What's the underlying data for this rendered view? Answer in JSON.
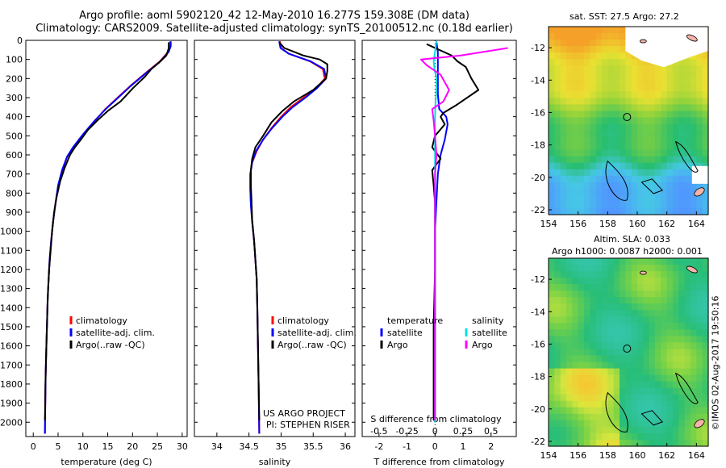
{
  "title_line1": "Argo profile: aoml 5902120_42 12-May-2010 16.277S 159.308E (DM data)",
  "title_line2": "Climatology: CARS2009. Satellite-adjusted climatology: synTS_20100512.nc (0.18d earlier)",
  "credit": "©IMOS 02-Aug-2017 19:50:16",
  "colors": {
    "climatology": "#ff0000",
    "satellite": "#0000ff",
    "argo": "#000000",
    "salinity_satellite": "#00e0e0",
    "salinity_argo": "#ff00ff"
  },
  "chart_data": [
    {
      "type": "line",
      "xlabel": "temperature (deg C)",
      "xlim": [
        -1.5,
        31
      ],
      "xticks": [
        0,
        5,
        10,
        15,
        20,
        25,
        30
      ],
      "ylim": [
        2075,
        0
      ],
      "yticks": [
        0,
        100,
        200,
        300,
        400,
        500,
        600,
        700,
        800,
        900,
        1000,
        1100,
        1200,
        1300,
        1400,
        1500,
        1600,
        1700,
        1800,
        1900,
        2000
      ],
      "y_reversed": true,
      "legend": {
        "position": "lower-center",
        "entries": [
          "climatology",
          "satellite-adj. clim.",
          "Argo(..raw -QC)"
        ]
      },
      "series": [
        {
          "name": "climatology",
          "points": [
            [
              27.6,
              5
            ],
            [
              27.6,
              30
            ],
            [
              27.2,
              60
            ],
            [
              25.5,
              110
            ],
            [
              22.7,
              170
            ],
            [
              19.5,
              240
            ],
            [
              17.0,
              300
            ],
            [
              14.5,
              360
            ],
            [
              12.5,
              420
            ],
            [
              10.2,
              490
            ],
            [
              8.2,
              560
            ],
            [
              6.8,
              610
            ],
            [
              5.9,
              680
            ],
            [
              5.1,
              760
            ],
            [
              4.5,
              850
            ],
            [
              4.0,
              950
            ],
            [
              3.6,
              1050
            ],
            [
              3.3,
              1150
            ],
            [
              3.1,
              1250
            ],
            [
              2.9,
              1350
            ],
            [
              2.8,
              1450
            ],
            [
              2.7,
              1550
            ],
            [
              2.6,
              1650
            ],
            [
              2.5,
              1750
            ],
            [
              2.45,
              1850
            ],
            [
              2.4,
              1950
            ],
            [
              2.35,
              2060
            ]
          ]
        },
        {
          "name": "satellite-adj. clim.",
          "points": [
            [
              27.7,
              5
            ],
            [
              27.7,
              30
            ],
            [
              27.3,
              60
            ],
            [
              25.6,
              110
            ],
            [
              22.8,
              170
            ],
            [
              19.6,
              240
            ],
            [
              17.1,
              300
            ],
            [
              14.6,
              360
            ],
            [
              12.4,
              420
            ],
            [
              10.1,
              490
            ],
            [
              8.0,
              560
            ],
            [
              6.8,
              610
            ],
            [
              5.8,
              680
            ],
            [
              5.0,
              760
            ],
            [
              4.5,
              850
            ],
            [
              4.0,
              950
            ],
            [
              3.6,
              1050
            ],
            [
              3.3,
              1150
            ],
            [
              3.1,
              1250
            ],
            [
              2.9,
              1350
            ],
            [
              2.8,
              1450
            ],
            [
              2.7,
              1550
            ],
            [
              2.6,
              1650
            ],
            [
              2.5,
              1750
            ],
            [
              2.45,
              1850
            ],
            [
              2.4,
              1950
            ],
            [
              2.35,
              2060
            ]
          ]
        },
        {
          "name": "Argo(..raw -QC)",
          "points": [
            [
              27.3,
              10
            ],
            [
              27.3,
              40
            ],
            [
              26.8,
              80
            ],
            [
              25.2,
              120
            ],
            [
              23.8,
              150
            ],
            [
              22.5,
              190
            ],
            [
              20.1,
              250
            ],
            [
              17.6,
              320
            ],
            [
              15.0,
              370
            ],
            [
              12.9,
              420
            ],
            [
              11.0,
              470
            ],
            [
              9.6,
              520
            ],
            [
              8.4,
              560
            ],
            [
              7.4,
              600
            ],
            [
              6.3,
              670
            ],
            [
              5.4,
              740
            ],
            [
              4.7,
              820
            ],
            [
              4.2,
              900
            ],
            [
              3.8,
              1000
            ],
            [
              3.5,
              1100
            ],
            [
              3.2,
              1200
            ],
            [
              3.0,
              1300
            ],
            [
              2.85,
              1400
            ],
            [
              2.75,
              1500
            ],
            [
              2.65,
              1600
            ],
            [
              2.55,
              1700
            ],
            [
              2.45,
              1800
            ],
            [
              2.4,
              1900
            ],
            [
              2.35,
              1990
            ]
          ]
        }
      ]
    },
    {
      "type": "line",
      "xlabel": "salinity",
      "xlim": [
        33.65,
        36.15
      ],
      "xticks": [
        34,
        34.5,
        35,
        35.5,
        36
      ],
      "ylim": [
        2075,
        0
      ],
      "y_reversed": true,
      "legend": {
        "position": "lower-center",
        "entries": [
          "climatology",
          "satellite-adj. clim.",
          "Argo(..raw -QC)"
        ]
      },
      "annotation": [
        "US ARGO PROJECT",
        "PI: STEPHEN RISER"
      ],
      "series": [
        {
          "name": "climatology",
          "points": [
            [
              34.98,
              5
            ],
            [
              35.0,
              40
            ],
            [
              35.12,
              70
            ],
            [
              35.45,
              110
            ],
            [
              35.65,
              150
            ],
            [
              35.68,
              200
            ],
            [
              35.55,
              250
            ],
            [
              35.35,
              300
            ],
            [
              35.15,
              350
            ],
            [
              35.0,
              400
            ],
            [
              34.85,
              460
            ],
            [
              34.72,
              520
            ],
            [
              34.62,
              580
            ],
            [
              34.55,
              640
            ],
            [
              34.52,
              700
            ],
            [
              34.52,
              780
            ],
            [
              34.53,
              860
            ],
            [
              34.55,
              950
            ],
            [
              34.58,
              1050
            ],
            [
              34.6,
              1150
            ],
            [
              34.62,
              1250
            ],
            [
              34.63,
              1400
            ],
            [
              34.64,
              1600
            ],
            [
              34.65,
              1800
            ],
            [
              34.66,
              2060
            ]
          ]
        },
        {
          "name": "satellite-adj. clim.",
          "points": [
            [
              34.97,
              5
            ],
            [
              34.99,
              40
            ],
            [
              35.12,
              70
            ],
            [
              35.46,
              110
            ],
            [
              35.67,
              150
            ],
            [
              35.7,
              200
            ],
            [
              35.56,
              250
            ],
            [
              35.38,
              300
            ],
            [
              35.18,
              350
            ],
            [
              35.02,
              400
            ],
            [
              34.86,
              460
            ],
            [
              34.72,
              520
            ],
            [
              34.61,
              580
            ],
            [
              34.55,
              640
            ],
            [
              34.52,
              700
            ],
            [
              34.52,
              780
            ],
            [
              34.53,
              860
            ],
            [
              34.55,
              950
            ],
            [
              34.58,
              1050
            ],
            [
              34.6,
              1150
            ],
            [
              34.62,
              1250
            ],
            [
              34.63,
              1400
            ],
            [
              34.64,
              1600
            ],
            [
              34.65,
              1800
            ],
            [
              34.66,
              2060
            ]
          ]
        },
        {
          "name": "Argo(..raw -QC)",
          "points": [
            [
              34.97,
              10
            ],
            [
              35.05,
              40
            ],
            [
              35.2,
              60
            ],
            [
              35.35,
              80
            ],
            [
              35.6,
              100
            ],
            [
              35.72,
              125
            ],
            [
              35.72,
              160
            ],
            [
              35.7,
              200
            ],
            [
              35.5,
              260
            ],
            [
              35.2,
              320
            ],
            [
              35.02,
              370
            ],
            [
              34.85,
              430
            ],
            [
              34.72,
              500
            ],
            [
              34.6,
              560
            ],
            [
              34.55,
              620
            ],
            [
              34.53,
              680
            ],
            [
              34.53,
              760
            ],
            [
              34.54,
              840
            ],
            [
              34.55,
              940
            ],
            [
              34.58,
              1050
            ],
            [
              34.6,
              1150
            ],
            [
              34.62,
              1250
            ],
            [
              34.63,
              1400
            ],
            [
              34.64,
              1600
            ],
            [
              34.65,
              1800
            ],
            [
              34.66,
              1990
            ]
          ]
        }
      ]
    },
    {
      "type": "line",
      "xlabel": "T difference from climatology",
      "xlabel_top": "S difference from climatology",
      "xlim": [
        -2.6,
        2.9
      ],
      "xticks": [
        -2,
        -1,
        0,
        1,
        2
      ],
      "xticks_top": [
        -0.5,
        -0.25,
        0,
        0.25,
        0.5
      ],
      "ylim": [
        2075,
        0
      ],
      "y_reversed": true,
      "legend": {
        "position": "lower-center",
        "entries": [
          "temperature",
          "satellite",
          "Argo",
          "salinity",
          "satellite",
          "Argo"
        ]
      },
      "series": [
        {
          "name": "satellite",
          "group": "temperature",
          "points": [
            [
              0.05,
              5
            ],
            [
              0.1,
              60
            ],
            [
              0.1,
              120
            ],
            [
              0.1,
              200
            ],
            [
              0.1,
              280
            ],
            [
              0.15,
              360
            ],
            [
              0.4,
              400
            ],
            [
              0.45,
              440
            ],
            [
              0.35,
              520
            ],
            [
              0.2,
              600
            ],
            [
              0.1,
              700
            ],
            [
              0.05,
              850
            ],
            [
              0.0,
              1000
            ],
            [
              0.0,
              1200
            ],
            [
              0.0,
              1500
            ],
            [
              0.0,
              2000
            ]
          ]
        },
        {
          "name": "Argo",
          "group": "temperature",
          "points": [
            [
              -0.3,
              20
            ],
            [
              0.6,
              80
            ],
            [
              0.8,
              110
            ],
            [
              1.1,
              140
            ],
            [
              1.3,
              200
            ],
            [
              1.55,
              260
            ],
            [
              0.75,
              340
            ],
            [
              0.3,
              380
            ],
            [
              0.2,
              400
            ],
            [
              0.35,
              440
            ],
            [
              0.0,
              500
            ],
            [
              -0.1,
              560
            ],
            [
              0.2,
              620
            ],
            [
              -0.1,
              680
            ],
            [
              -0.05,
              760
            ],
            [
              0.0,
              850
            ],
            [
              0.0,
              1000
            ],
            [
              0.0,
              1200
            ],
            [
              -0.05,
              1500
            ],
            [
              -0.05,
              1800
            ],
            [
              -0.05,
              1990
            ]
          ]
        },
        {
          "name": "satellite",
          "group": "salinity",
          "points": [
            [
              0.05,
              5
            ],
            [
              0.0,
              60
            ],
            [
              -0.05,
              110
            ],
            [
              -0.02,
              150
            ],
            [
              0.05,
              200
            ],
            [
              0.05,
              260
            ],
            [
              0.02,
              320
            ],
            [
              0.0,
              400
            ],
            [
              0.0,
              500
            ],
            [
              0.0,
              700
            ],
            [
              0.0,
              1000
            ],
            [
              0.0,
              1500
            ],
            [
              0.0,
              2000
            ]
          ]
        },
        {
          "name": "Argo",
          "group": "salinity",
          "points": [
            [
              2.6,
              40
            ],
            [
              0.9,
              80
            ],
            [
              -0.5,
              100
            ],
            [
              -0.3,
              130
            ],
            [
              0.2,
              180
            ],
            [
              0.5,
              260
            ],
            [
              0.3,
              320
            ],
            [
              -0.1,
              360
            ],
            [
              -0.05,
              420
            ],
            [
              0.0,
              500
            ],
            [
              0.05,
              600
            ],
            [
              0.0,
              700
            ],
            [
              0.0,
              900
            ],
            [
              0.0,
              1200
            ],
            [
              0.0,
              1600
            ],
            [
              0.0,
              1990
            ]
          ]
        }
      ]
    },
    {
      "type": "heatmap",
      "title": "sat. SST: 27.5  Argo: 27.2",
      "xlim": [
        154,
        164.8
      ],
      "ylim": [
        -22.3,
        -10.7
      ],
      "xticks": [
        154,
        156,
        158,
        160,
        162,
        164
      ],
      "yticks": [
        -12,
        -14,
        -16,
        -18,
        -20,
        -22
      ],
      "marker": {
        "lon": 159.308,
        "lat": -16.277
      }
    },
    {
      "type": "heatmap",
      "title_line1": "Altim. SLA: 0.033",
      "title_line2": "Argo h1000: 0.0087 h2000: 0.001",
      "xlim": [
        154,
        164.8
      ],
      "ylim": [
        -22.3,
        -10.7
      ],
      "xticks": [
        154,
        156,
        158,
        160,
        162,
        164
      ],
      "yticks": [
        -12,
        -14,
        -16,
        -18,
        -20,
        -22
      ],
      "marker": {
        "lon": 159.308,
        "lat": -16.277
      }
    }
  ]
}
